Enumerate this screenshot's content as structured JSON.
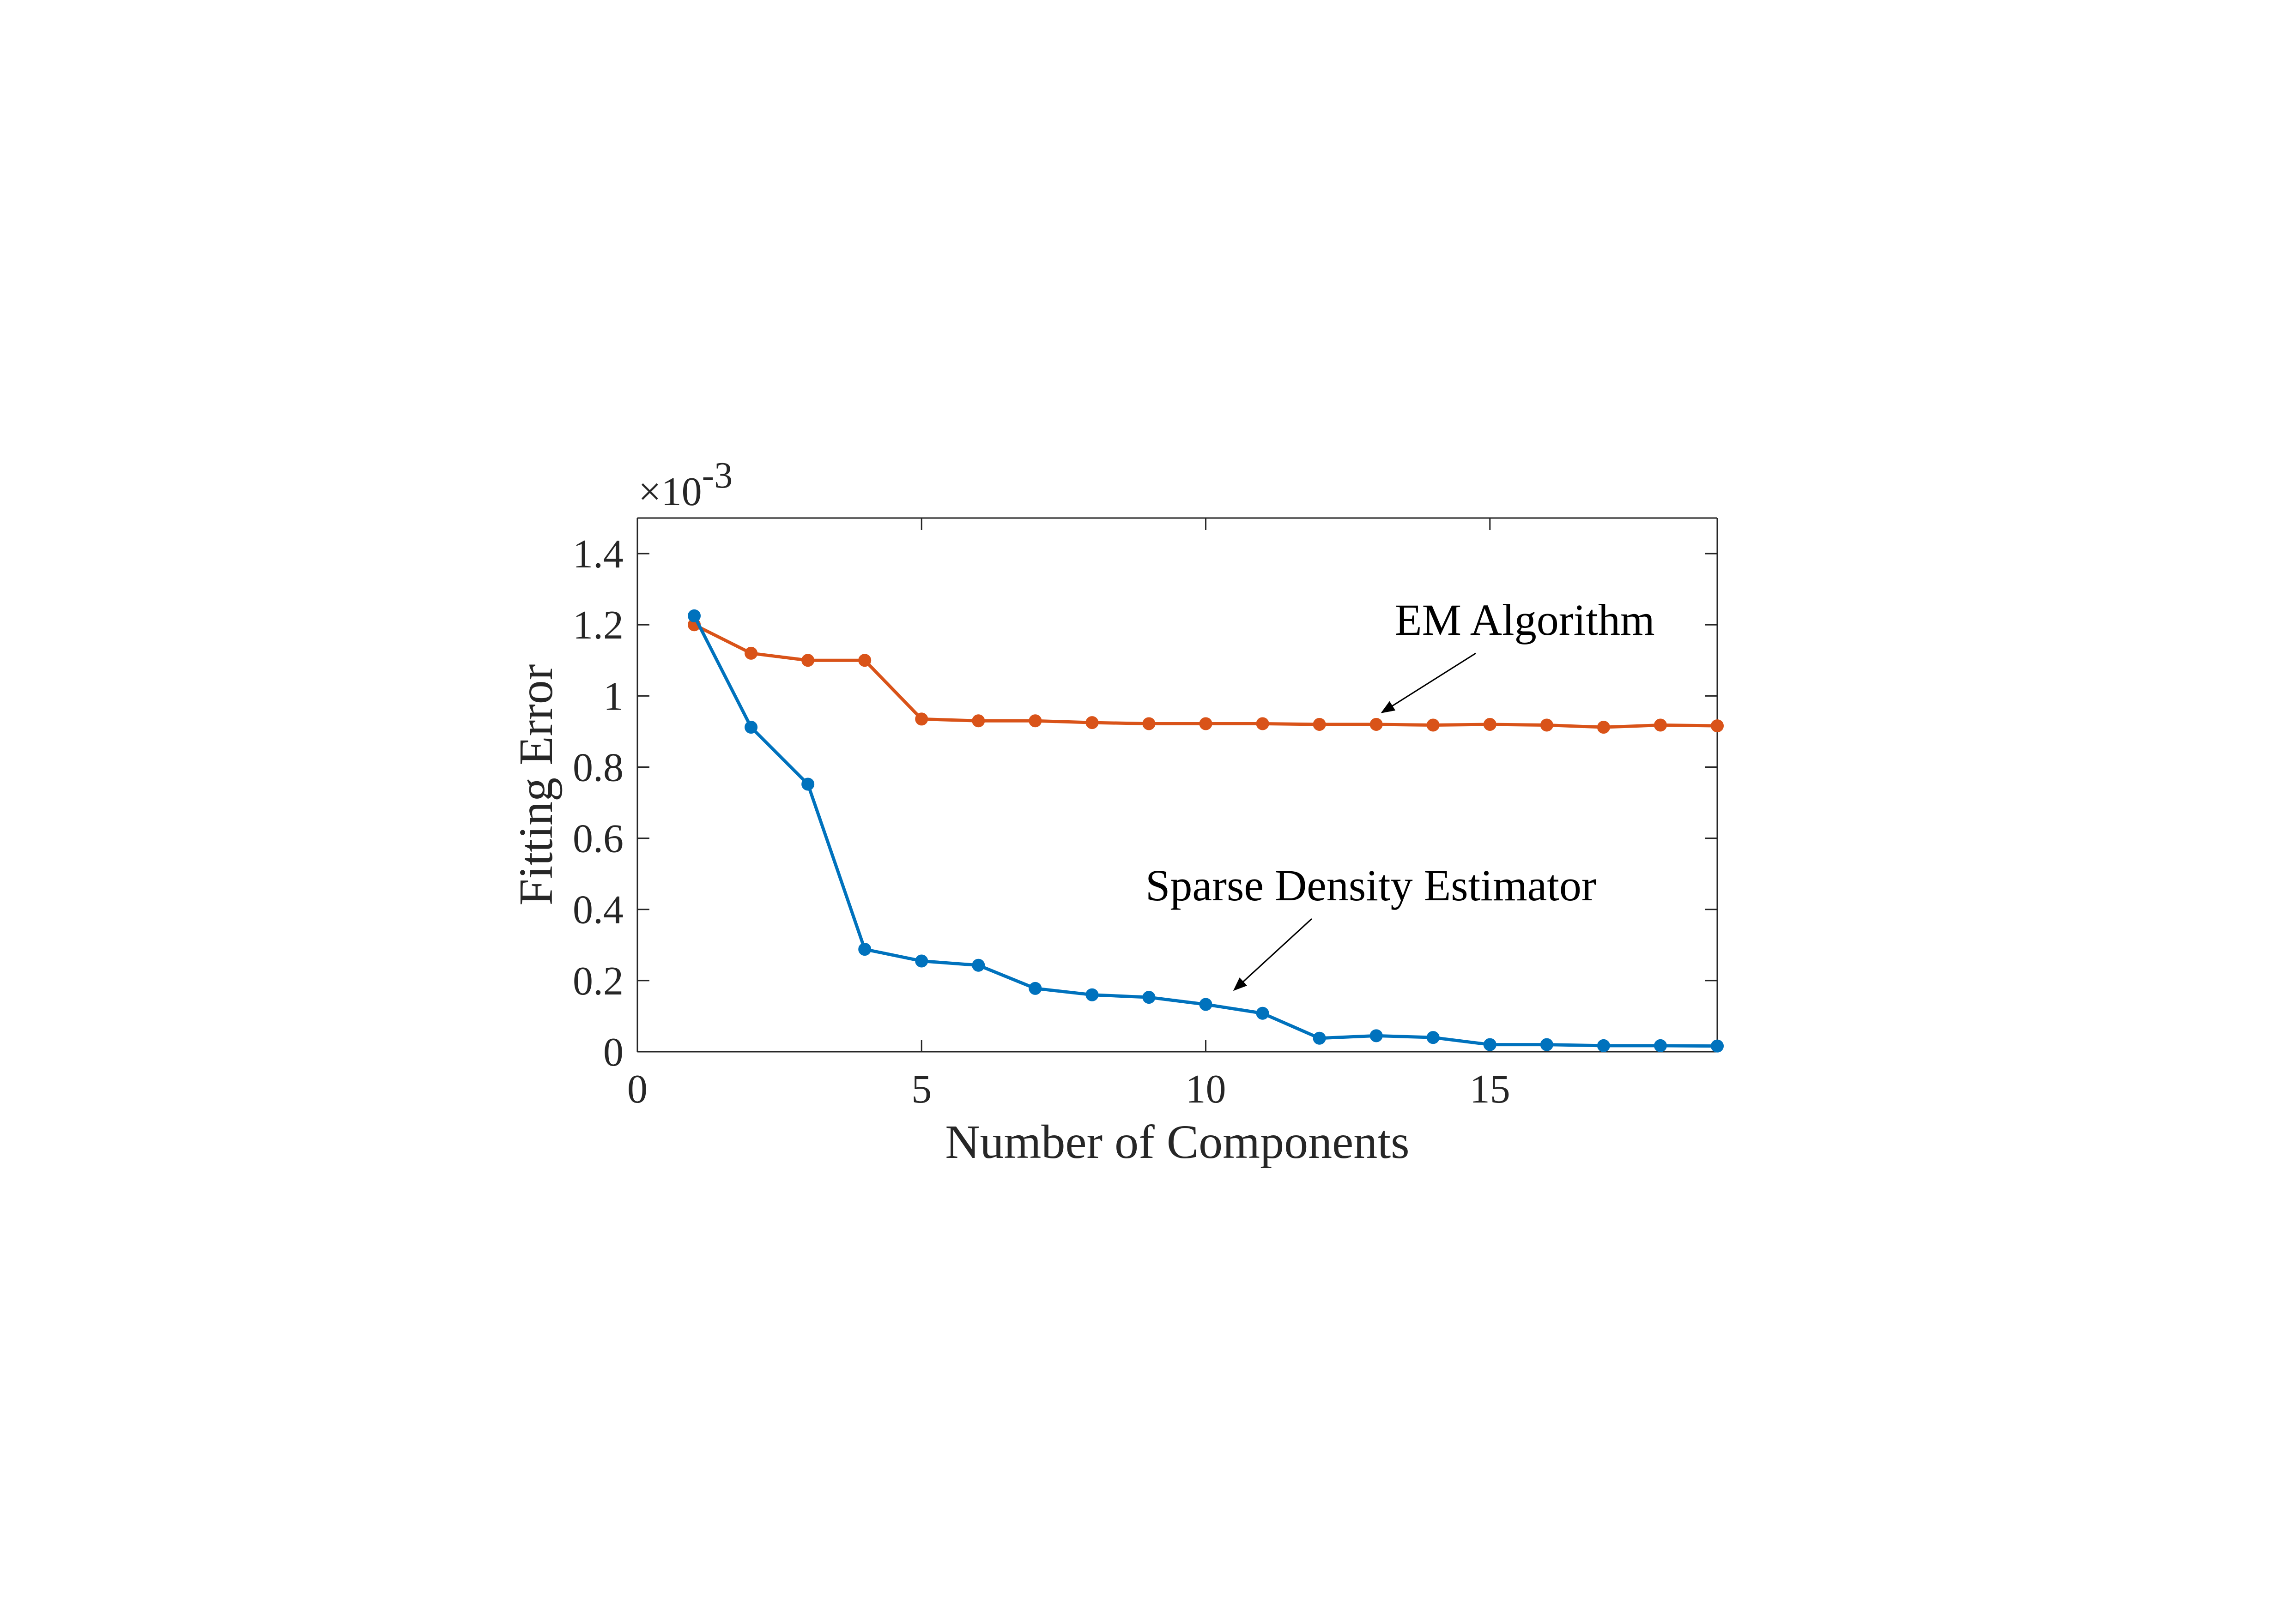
{
  "chart_data": {
    "type": "line",
    "xlabel": "Number of Components",
    "ylabel": "Fitting Error",
    "y_exponent_base": "×10",
    "y_exponent_power": "-3",
    "xlim": [
      0,
      19
    ],
    "ylim": [
      0,
      1.5
    ],
    "xticks": [
      0,
      5,
      10,
      15
    ],
    "xtick_labels": [
      "0",
      "5",
      "10",
      "15"
    ],
    "yticks": [
      0,
      0.2,
      0.4,
      0.6,
      0.8,
      1.0,
      1.2,
      1.4
    ],
    "ytick_labels": [
      "0",
      "0.2",
      "0.4",
      "0.6",
      "0.8",
      "1",
      "1.2",
      "1.4"
    ],
    "grid": false,
    "x": [
      1,
      2,
      3,
      4,
      5,
      6,
      7,
      8,
      9,
      10,
      11,
      12,
      13,
      14,
      15,
      16,
      17,
      18,
      19
    ],
    "series": [
      {
        "id": "em",
        "color": "#D95319",
        "values": [
          1.2,
          1.12,
          1.1,
          1.1,
          0.935,
          0.93,
          0.93,
          0.925,
          0.922,
          0.922,
          0.922,
          0.92,
          0.92,
          0.918,
          0.92,
          0.918,
          0.912,
          0.918,
          0.916
        ]
      },
      {
        "id": "sde",
        "color": "#0072BD",
        "values": [
          1.225,
          0.912,
          0.752,
          0.288,
          0.255,
          0.243,
          0.178,
          0.16,
          0.153,
          0.133,
          0.108,
          0.038,
          0.045,
          0.04,
          0.02,
          0.02,
          0.017,
          0.017,
          0.016
        ]
      }
    ],
    "annotations": [
      {
        "text": "EM Algorithm",
        "series": "em",
        "arrow_to_x": 13.1,
        "arrow_to_y": 0.925
      },
      {
        "text": "Sparse Density Estimator",
        "series": "sde",
        "arrow_to_x": 10.5,
        "arrow_to_y": 0.145
      }
    ]
  }
}
